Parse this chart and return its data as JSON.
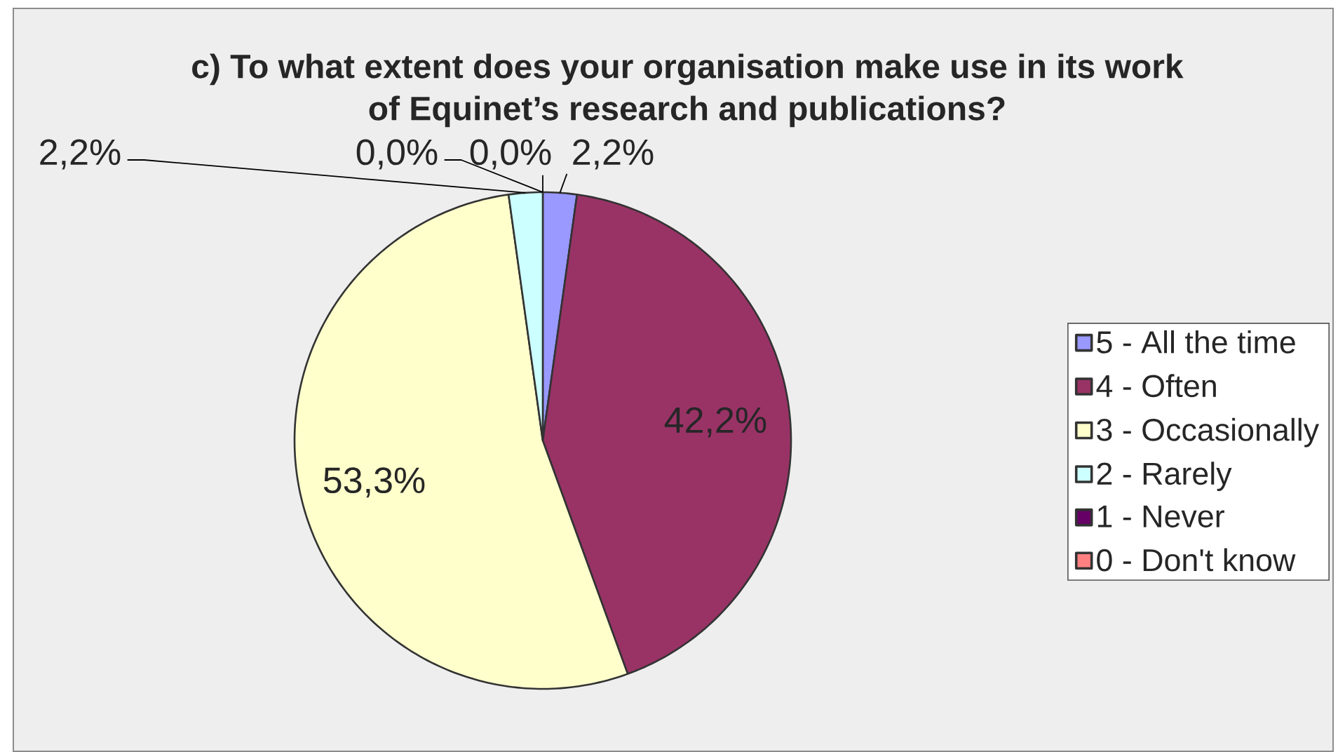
{
  "chart_data": {
    "type": "pie",
    "title": "c) To what extent does your organisation make use in its work of Equinet’s research and publications?",
    "categories": [
      "5 - All the time",
      "4 - Often",
      "3 - Occasionally",
      "2 - Rarely",
      "1 - Never",
      "0 - Don't know"
    ],
    "values": [
      2.2,
      42.2,
      53.3,
      2.2,
      0.0,
      0.0
    ],
    "colors": [
      "#9999ff",
      "#993366",
      "#ffffcc",
      "#ccffff",
      "#660066",
      "#ff8080"
    ],
    "value_labels": [
      "2,2%",
      "42,2%",
      "53,3%",
      "2,2%",
      "0,0%",
      "0,0%"
    ],
    "legend": "right"
  }
}
